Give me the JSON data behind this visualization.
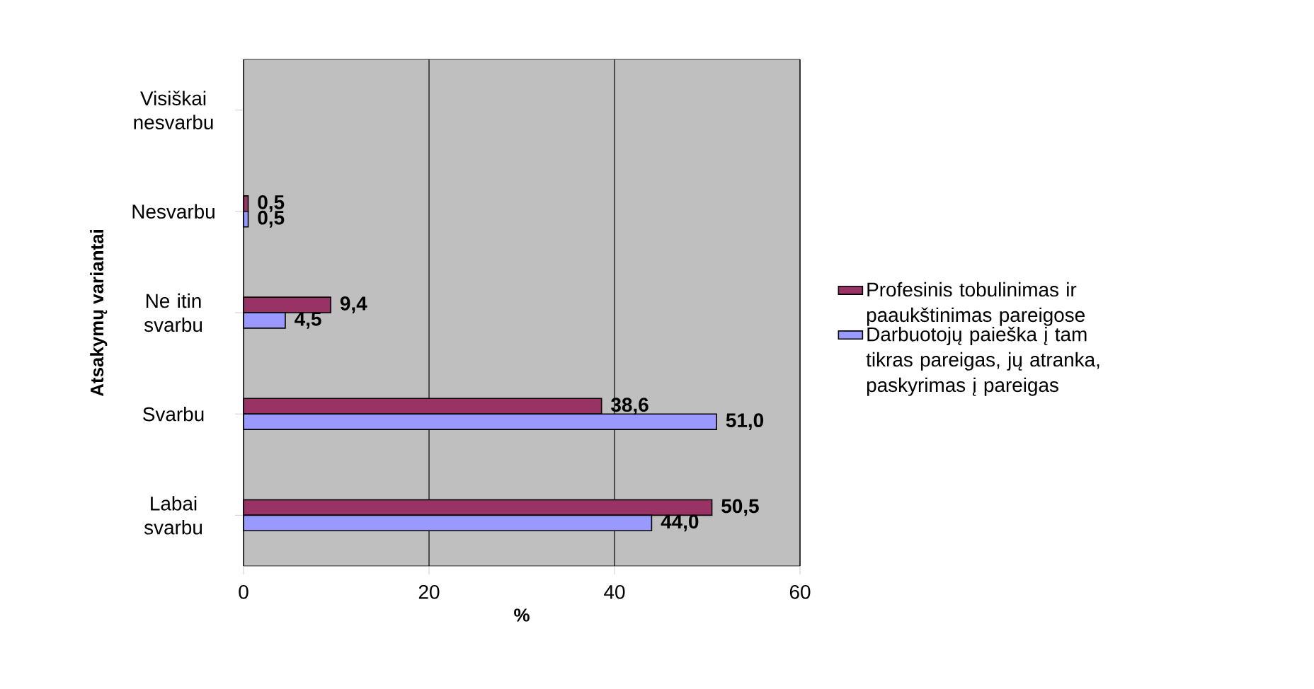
{
  "chart_data": {
    "type": "bar",
    "orientation": "horizontal",
    "xlabel": "%",
    "ylabel": "Atsakymų variantai",
    "categories": [
      "Visiškai nesvarbu",
      "Nesvarbu",
      "Ne itin svarbu",
      "Svarbu",
      "Labai svarbu"
    ],
    "series": [
      {
        "name": "Profesinis tobulinimas ir paaukštinimas pareigose",
        "color": "#993366",
        "values": [
          null,
          0.5,
          9.4,
          38.6,
          50.5
        ],
        "value_labels": [
          null,
          "0,5",
          "9,4",
          "38,6",
          "50,5"
        ]
      },
      {
        "name": "Darbuotojų paieška į tam tikras pareigas, jų atranka, paskyrimas į pareigas",
        "color": "#9999ff",
        "values": [
          null,
          0.5,
          4.5,
          51.0,
          44.0
        ],
        "value_labels": [
          null,
          "0,5",
          "4,5",
          "51,0",
          "44,0"
        ]
      }
    ],
    "xlim": [
      0,
      60
    ],
    "xticks": [
      0,
      20,
      40,
      60
    ],
    "grid": "x",
    "legend": "right"
  }
}
